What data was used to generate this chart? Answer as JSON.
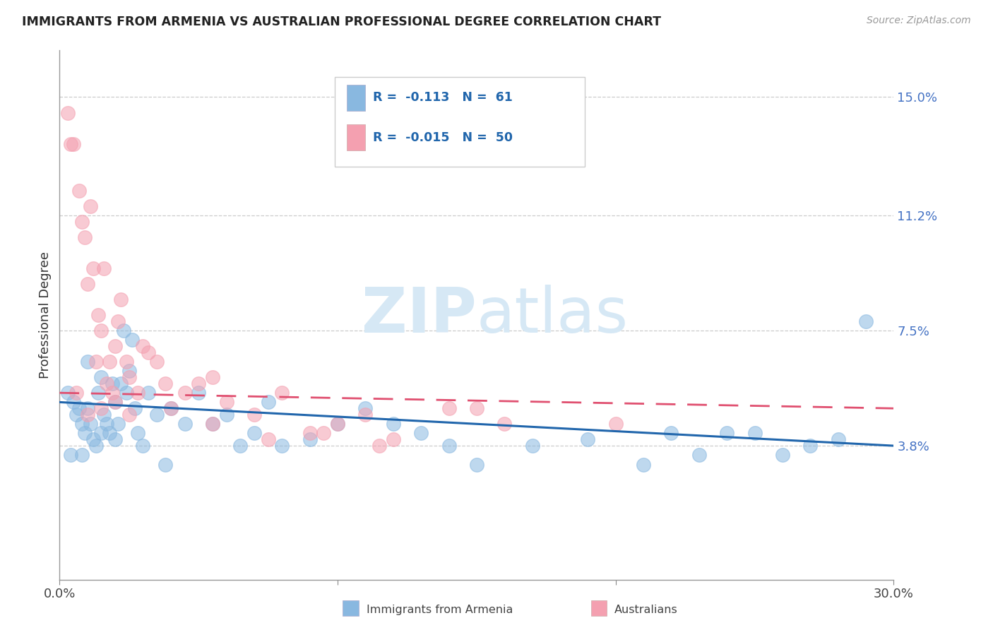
{
  "title": "IMMIGRANTS FROM ARMENIA VS AUSTRALIAN PROFESSIONAL DEGREE CORRELATION CHART",
  "source_text": "Source: ZipAtlas.com",
  "ylabel": "Professional Degree",
  "x_min": 0.0,
  "x_max": 30.0,
  "y_min": -0.5,
  "y_max": 16.5,
  "y_ticks": [
    3.8,
    7.5,
    11.2,
    15.0
  ],
  "legend_r1": "R =  -0.113",
  "legend_n1": "N =  61",
  "legend_r2": "R =  -0.015",
  "legend_n2": "N =  50",
  "color_blue": "#89b8e0",
  "color_pink": "#f4a0b0",
  "line_color_blue": "#2166ac",
  "line_color_pink": "#e05070",
  "background_color": "#ffffff",
  "watermark_color": "#d6e8f5",
  "blue_scatter_x": [
    0.3,
    0.5,
    0.6,
    0.7,
    0.8,
    0.9,
    1.0,
    1.0,
    1.1,
    1.2,
    1.3,
    1.4,
    1.5,
    1.5,
    1.6,
    1.7,
    1.8,
    1.9,
    2.0,
    2.0,
    2.1,
    2.2,
    2.3,
    2.4,
    2.5,
    2.6,
    2.7,
    2.8,
    3.0,
    3.2,
    3.5,
    3.8,
    4.0,
    4.5,
    5.0,
    5.5,
    6.0,
    6.5,
    7.0,
    7.5,
    8.0,
    9.0,
    10.0,
    11.0,
    12.0,
    13.0,
    14.0,
    15.0,
    17.0,
    19.0,
    21.0,
    22.0,
    23.0,
    24.0,
    25.0,
    26.0,
    27.0,
    28.0,
    29.0,
    0.4,
    0.8
  ],
  "blue_scatter_y": [
    5.5,
    5.2,
    4.8,
    5.0,
    4.5,
    4.2,
    6.5,
    5.0,
    4.5,
    4.0,
    3.8,
    5.5,
    6.0,
    4.2,
    4.8,
    4.5,
    4.2,
    5.8,
    5.2,
    4.0,
    4.5,
    5.8,
    7.5,
    5.5,
    6.2,
    7.2,
    5.0,
    4.2,
    3.8,
    5.5,
    4.8,
    3.2,
    5.0,
    4.5,
    5.5,
    4.5,
    4.8,
    3.8,
    4.2,
    5.2,
    3.8,
    4.0,
    4.5,
    5.0,
    4.5,
    4.2,
    3.8,
    3.2,
    3.8,
    4.0,
    3.2,
    4.2,
    3.5,
    4.2,
    4.2,
    3.5,
    3.8,
    4.0,
    7.8,
    3.5,
    3.5
  ],
  "pink_scatter_x": [
    0.3,
    0.5,
    0.7,
    0.8,
    0.9,
    1.0,
    1.1,
    1.2,
    1.3,
    1.4,
    1.5,
    1.6,
    1.7,
    1.8,
    1.9,
    2.0,
    2.1,
    2.2,
    2.4,
    2.5,
    2.8,
    3.0,
    3.2,
    3.5,
    4.0,
    4.5,
    5.0,
    5.5,
    6.0,
    7.0,
    8.0,
    9.0,
    10.0,
    11.0,
    12.0,
    14.0,
    15.0,
    16.0,
    20.0,
    0.4,
    0.6,
    1.0,
    1.5,
    2.0,
    2.5,
    3.8,
    5.5,
    7.5,
    9.5,
    11.5
  ],
  "pink_scatter_y": [
    14.5,
    13.5,
    12.0,
    11.0,
    10.5,
    9.0,
    11.5,
    9.5,
    6.5,
    8.0,
    7.5,
    9.5,
    5.8,
    6.5,
    5.5,
    7.0,
    7.8,
    8.5,
    6.5,
    6.0,
    5.5,
    7.0,
    6.8,
    6.5,
    5.0,
    5.5,
    5.8,
    4.5,
    5.2,
    4.8,
    5.5,
    4.2,
    4.5,
    4.8,
    4.0,
    5.0,
    5.0,
    4.5,
    4.5,
    13.5,
    5.5,
    4.8,
    5.0,
    5.2,
    4.8,
    5.8,
    6.0,
    4.0,
    4.2,
    3.8
  ],
  "blue_trend_x0": 0.0,
  "blue_trend_y0": 5.2,
  "blue_trend_x1": 30.0,
  "blue_trend_y1": 3.8,
  "pink_trend_x0": 0.0,
  "pink_trend_y0": 5.5,
  "pink_trend_x1": 30.0,
  "pink_trend_y1": 5.0
}
